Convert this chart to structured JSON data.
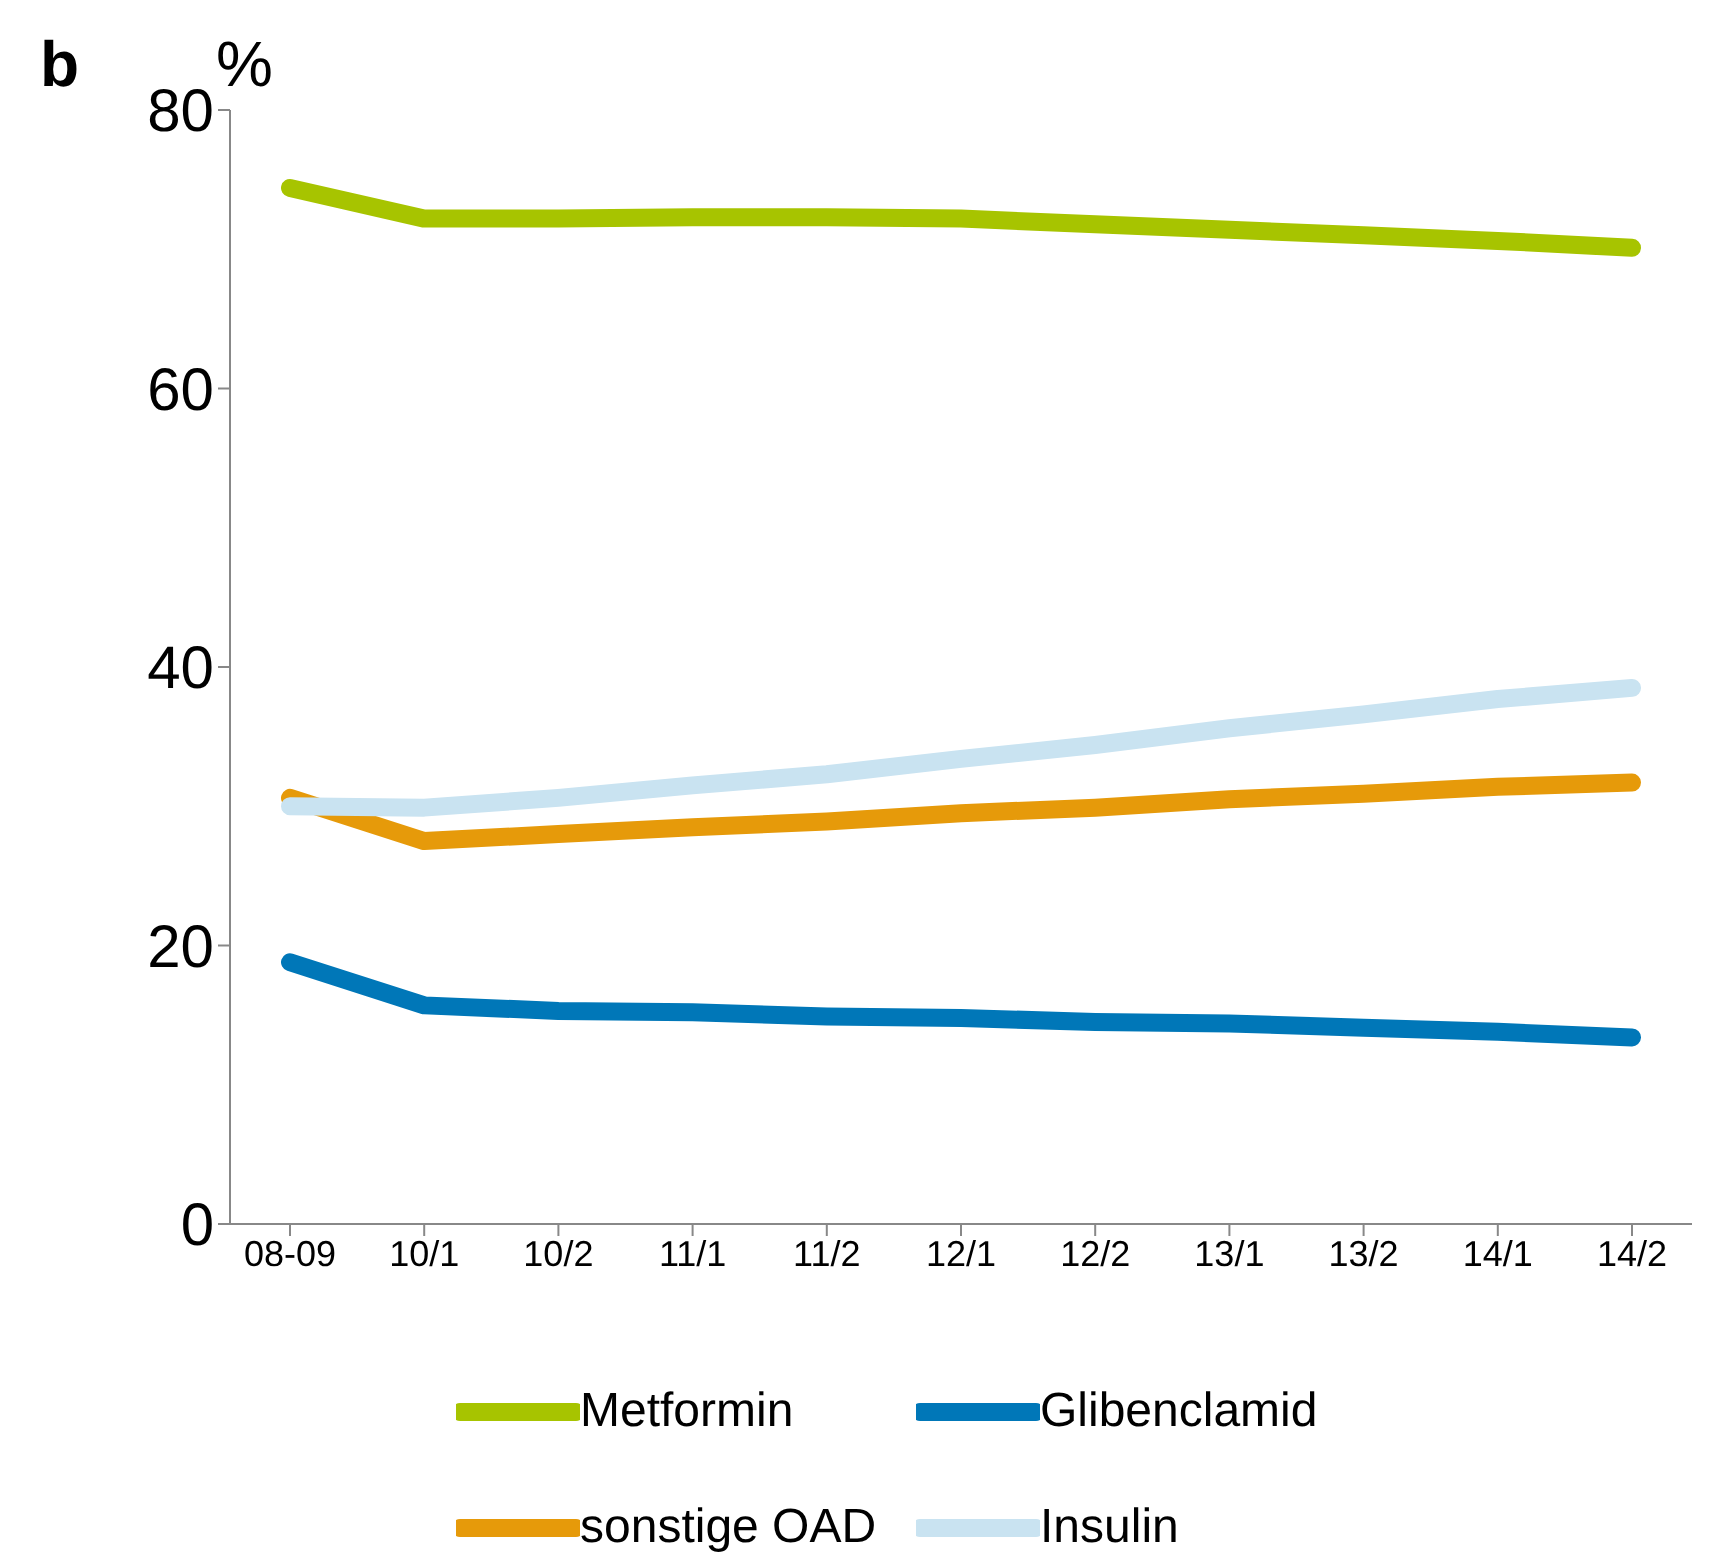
{
  "chart_data": {
    "type": "line",
    "title": "b",
    "ylabel": "%",
    "categories": [
      "08-09",
      "10/1",
      "10/2",
      "11/1",
      "11/2",
      "12/1",
      "12/2",
      "13/1",
      "13/2",
      "14/1",
      "14/2"
    ],
    "series": [
      {
        "name": "Metformin",
        "color": "#a7c400",
        "values": [
          74.4,
          72.2,
          72.2,
          72.3,
          72.3,
          72.2,
          71.8,
          71.4,
          71.0,
          70.6,
          70.1
        ]
      },
      {
        "name": "Glibenclamid",
        "color": "#0077b8",
        "values": [
          18.8,
          15.7,
          15.3,
          15.2,
          14.9,
          14.8,
          14.5,
          14.4,
          14.1,
          13.8,
          13.4
        ]
      },
      {
        "name": "sonstige OAD",
        "color": "#e69a0a",
        "values": [
          30.6,
          27.5,
          28.0,
          28.5,
          28.9,
          29.5,
          29.9,
          30.5,
          30.9,
          31.4,
          31.7
        ]
      },
      {
        "name": "Insulin",
        "color": "#c9e3f1",
        "values": [
          30.0,
          29.9,
          30.6,
          31.5,
          32.3,
          33.4,
          34.4,
          35.6,
          36.6,
          37.7,
          38.5
        ]
      }
    ],
    "ylim": [
      0,
      80
    ],
    "yticks": [
      0,
      20,
      40,
      60,
      80
    ],
    "grid": false,
    "legend": "bottom",
    "marker": "none",
    "line_style": "solid"
  }
}
